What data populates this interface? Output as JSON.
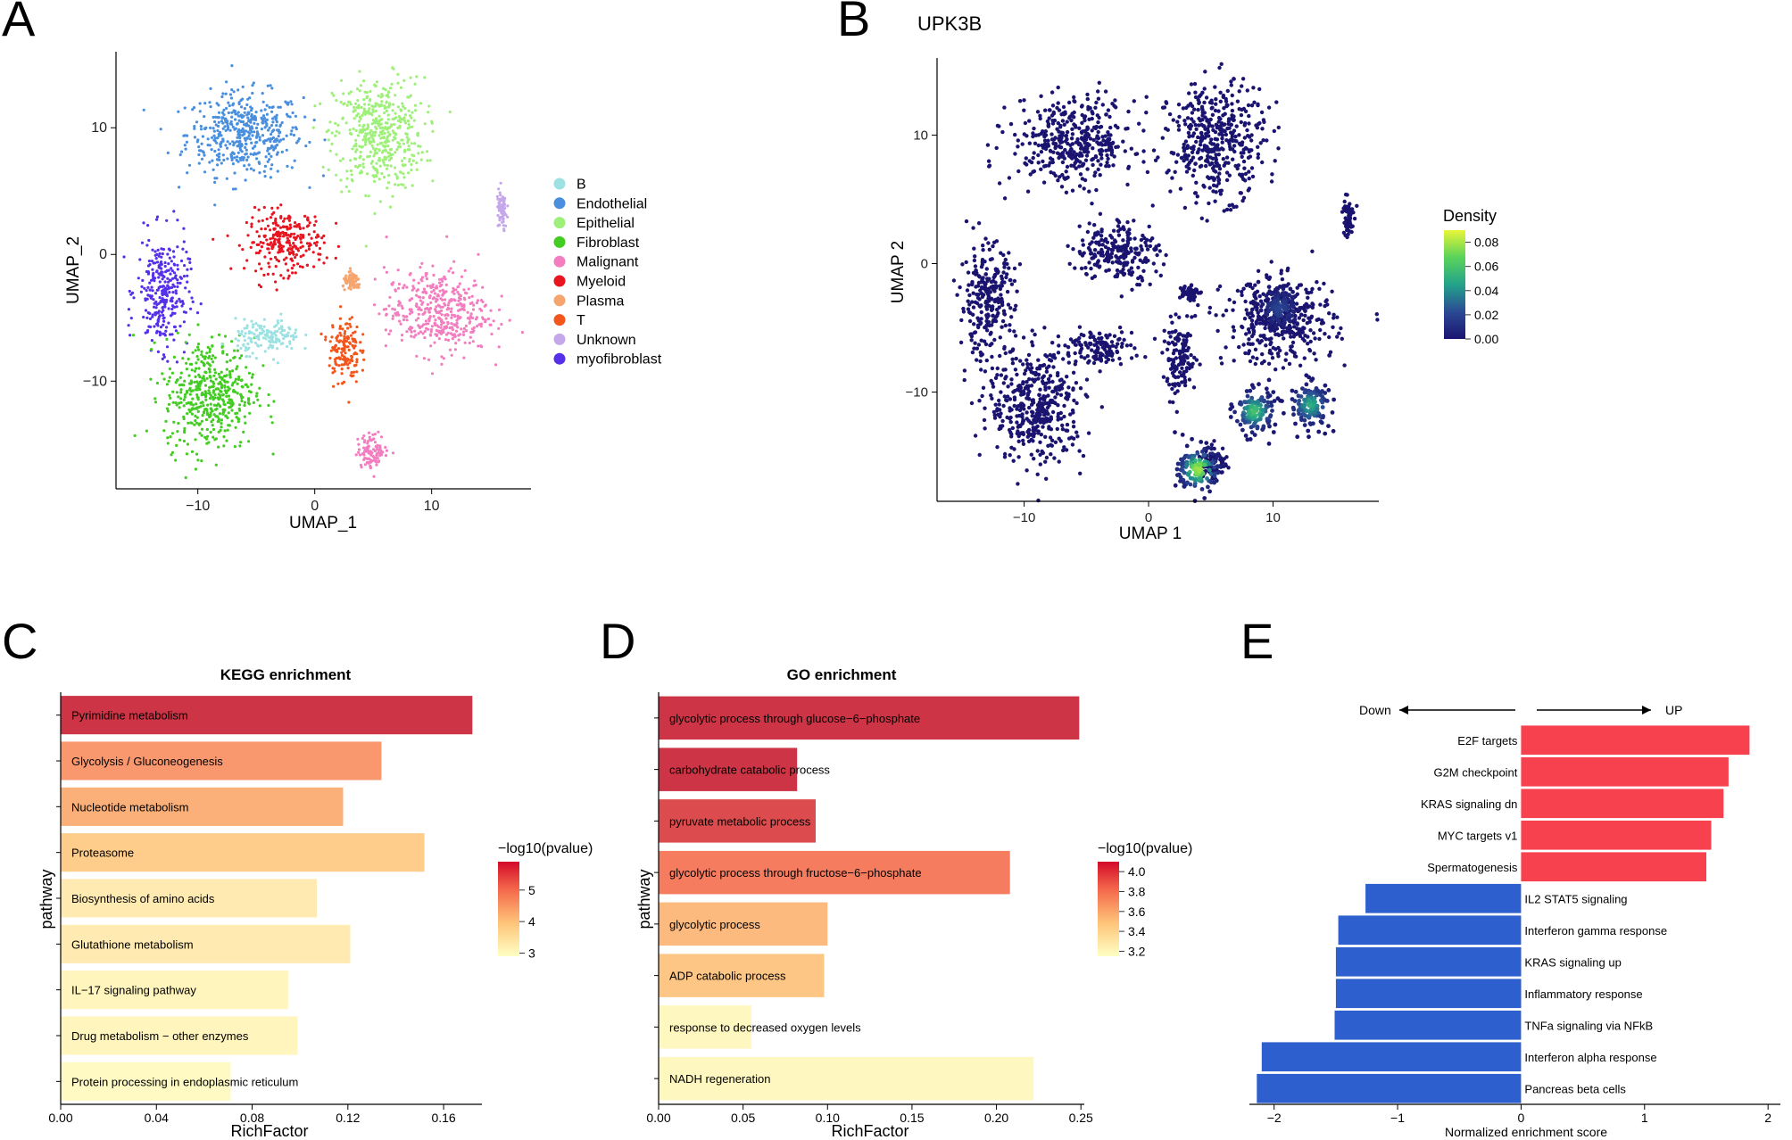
{
  "panels": {
    "A": "A",
    "B": "B",
    "C": "C",
    "D": "D",
    "E": "E"
  },
  "chart_data": [
    {
      "id": "A",
      "type": "scatter",
      "title": "",
      "xlabel": "UMAP_1",
      "ylabel": "UMAP_2",
      "xlim": [
        -17,
        18.5
      ],
      "ylim": [
        -18.5,
        16
      ],
      "xticks": [
        -10,
        0,
        10
      ],
      "yticks": [
        -10,
        0,
        10
      ],
      "xtick_labels": [
        "−10",
        "0",
        "10"
      ],
      "ytick_labels": [
        "−10",
        "0",
        "10"
      ],
      "legend": [
        {
          "name": "B",
          "color": "#9ee1e3"
        },
        {
          "name": "Endothelial",
          "color": "#4a8fde"
        },
        {
          "name": "Epithelial",
          "color": "#9ff07a"
        },
        {
          "name": "Fibroblast",
          "color": "#43cc22"
        },
        {
          "name": "Malignant",
          "color": "#f27ec0"
        },
        {
          "name": "Myeloid",
          "color": "#e8141f"
        },
        {
          "name": "Plasma",
          "color": "#f6a56e"
        },
        {
          "name": "T",
          "color": "#f2561c"
        },
        {
          "name": "Unknown",
          "color": "#c5a8ea"
        },
        {
          "name": "myofibroblast",
          "color": "#5530e8"
        }
      ],
      "clusters": [
        {
          "name": "Endothelial",
          "cx": -6,
          "cy": 9.5,
          "rx": 4.5,
          "ry": 3
        },
        {
          "name": "Epithelial",
          "cx": 5.5,
          "cy": 9.5,
          "rx": 3.5,
          "ry": 4
        },
        {
          "name": "Myeloid",
          "cx": -2.5,
          "cy": 1,
          "rx": 3,
          "ry": 2.2
        },
        {
          "name": "myofibroblast",
          "cx": -13,
          "cy": -3,
          "rx": 2,
          "ry": 4
        },
        {
          "name": "Fibroblast",
          "cx": -9,
          "cy": -11,
          "rx": 3.5,
          "ry": 4
        },
        {
          "name": "Malignant",
          "cx": 10.5,
          "cy": -4.5,
          "rx": 4,
          "ry": 3
        },
        {
          "name": "Malignant",
          "cx": 5,
          "cy": -15.5,
          "rx": 1.2,
          "ry": 1.2
        },
        {
          "name": "T",
          "cx": 2.5,
          "cy": -7.5,
          "rx": 1.2,
          "ry": 2.5
        },
        {
          "name": "B",
          "cx": -4,
          "cy": -6.5,
          "rx": 2.5,
          "ry": 1.2
        },
        {
          "name": "Plasma",
          "cx": 3.2,
          "cy": -2.2,
          "rx": 0.7,
          "ry": 0.6
        },
        {
          "name": "Unknown",
          "cx": 16,
          "cy": 3.5,
          "rx": 0.4,
          "ry": 1.5
        }
      ]
    },
    {
      "id": "B",
      "type": "scatter",
      "title": "UPK3B",
      "xlabel": "UMAP 1",
      "ylabel": "UMAP 2",
      "xlim": [
        -17,
        18.5
      ],
      "ylim": [
        -18.5,
        16
      ],
      "xticks": [
        -10,
        0,
        10
      ],
      "yticks": [
        -10,
        0,
        10
      ],
      "xtick_labels": [
        "−10",
        "0",
        "10"
      ],
      "ytick_labels": [
        "−10",
        "0",
        "10"
      ],
      "colorbar_title": "Density",
      "colorbar_range": [
        0,
        0.09
      ],
      "colorbar_ticks": [
        "0.08",
        "0.06",
        "0.04",
        "0.02",
        "0.00"
      ],
      "colorbar_values": [
        0.08,
        0.06,
        0.04,
        0.02,
        0.0
      ],
      "base_color": "#1a1470",
      "hotspots": [
        {
          "cx": 4,
          "cy": -16,
          "density": 0.08
        },
        {
          "cx": 8.5,
          "cy": -11.5,
          "density": 0.06
        },
        {
          "cx": 13,
          "cy": -11,
          "density": 0.05
        },
        {
          "cx": 10.5,
          "cy": -3.5,
          "density": 0.02
        }
      ]
    },
    {
      "id": "C",
      "type": "bar",
      "orientation": "horizontal",
      "title": "KEGG enrichment",
      "xlabel": "RichFactor",
      "ylabel": "pathway",
      "xlim": [
        0,
        0.176
      ],
      "xticks": [
        0,
        0.04,
        0.08,
        0.12,
        0.16
      ],
      "xtick_labels": [
        "0.00",
        "0.04",
        "0.08",
        "0.12",
        "0.16"
      ],
      "categories": [
        "Pyrimidine metabolism",
        "Glycolysis / Gluconeogenesis",
        "Nucleotide metabolism",
        "Proteasome",
        "Biosynthesis of amino acids",
        "Glutathione metabolism",
        "IL−17 signaling pathway",
        "Drug metabolism − other enzymes",
        "Protein processing in endoplasmic reticulum"
      ],
      "values": [
        0.172,
        0.134,
        0.118,
        0.152,
        0.107,
        0.121,
        0.095,
        0.099,
        0.071
      ],
      "color_values": [
        5.9,
        4.6,
        4.3,
        3.9,
        3.3,
        3.3,
        3.1,
        3.1,
        3.0
      ],
      "color_title": "−log10(pvalue)",
      "color_range": [
        2.9,
        5.9
      ],
      "color_ticks": [
        "5",
        "4",
        "3"
      ],
      "color_tick_values": [
        5,
        4,
        3
      ]
    },
    {
      "id": "D",
      "type": "bar",
      "orientation": "horizontal",
      "title": "GO enrichment",
      "xlabel": "RichFactor",
      "ylabel": "pathway",
      "xlim": [
        0,
        0.252
      ],
      "xticks": [
        0,
        0.05,
        0.1,
        0.15,
        0.2,
        0.25
      ],
      "xtick_labels": [
        "0.00",
        "0.05",
        "0.10",
        "0.15",
        "0.20",
        "0.25"
      ],
      "categories": [
        "glycolytic process through glucose−6−phosphate",
        "carbohydrate catabolic process",
        "pyruvate metabolic process",
        "glycolytic process through fructose−6−phosphate",
        "glycolytic process",
        "ADP catabolic process",
        "response to decreased oxygen levels",
        "NADH regeneration"
      ],
      "values": [
        0.249,
        0.082,
        0.093,
        0.208,
        0.1,
        0.098,
        0.055,
        0.222
      ],
      "color_values": [
        4.1,
        4.1,
        4.0,
        3.8,
        3.55,
        3.5,
        3.2,
        3.2
      ],
      "color_title": "−log10(pvalue)",
      "color_range": [
        3.15,
        4.1
      ],
      "color_ticks": [
        "4.0",
        "3.8",
        "3.6",
        "3.4",
        "3.2"
      ],
      "color_tick_values": [
        4.0,
        3.8,
        3.6,
        3.4,
        3.2
      ]
    },
    {
      "id": "E",
      "type": "bar",
      "orientation": "horizontal",
      "title": "",
      "xlabel": "Normalized enrichment score",
      "xlim": [
        -2.2,
        2.1
      ],
      "xticks": [
        -2,
        -1,
        0,
        1,
        2
      ],
      "xtick_labels": [
        "−2",
        "−1",
        "0",
        "1",
        "2"
      ],
      "down_label": "Down",
      "up_label": "UP",
      "categories": [
        "E2F targets",
        "G2M checkpoint",
        "KRAS signaling dn",
        "MYC targets v1",
        "Spermatogenesis",
        "IL2 STAT5 signaling",
        "Interferon gamma response",
        "KRAS signaling up",
        "Inflammatory response",
        "TNFa signaling via NFkB",
        "Interferon alpha response",
        "Pancreas beta cells"
      ],
      "values": [
        1.85,
        1.68,
        1.64,
        1.54,
        1.5,
        -1.26,
        -1.48,
        -1.5,
        -1.5,
        -1.51,
        -2.1,
        -2.14
      ],
      "colors": {
        "up": "#f7414f",
        "down": "#2e5fce"
      }
    }
  ]
}
